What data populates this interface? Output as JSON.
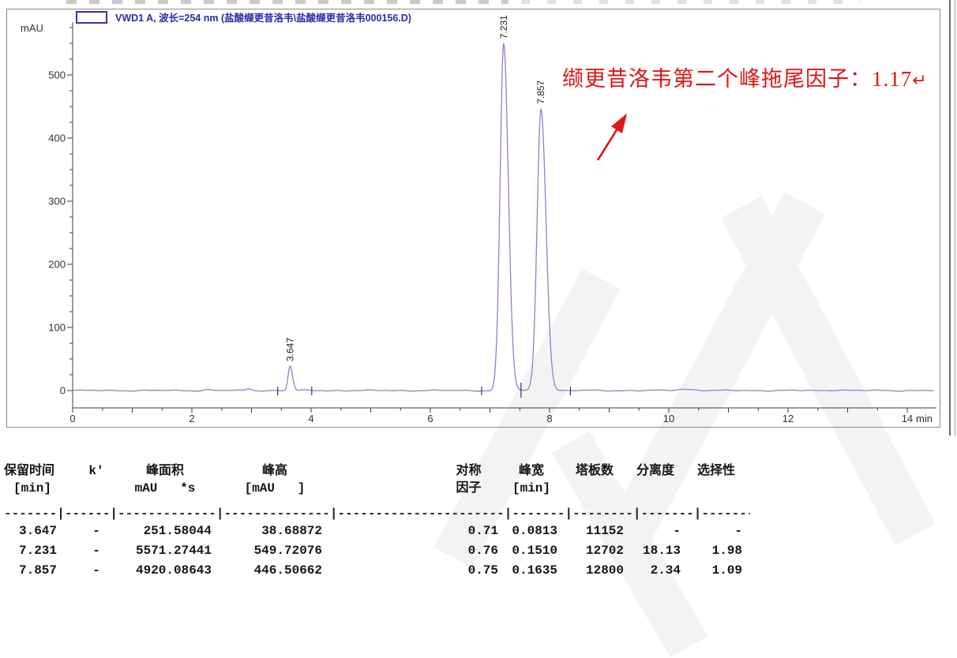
{
  "chart_data": {
    "type": "line",
    "legend": "VWD1 A, 波长=254 nm (盐酸缬更昔洛韦\\盐酸缬更昔洛韦000156.D)",
    "y_axis_unit": "mAU",
    "x_axis_unit": "min",
    "x_ticks": [
      0,
      2,
      4,
      6,
      8,
      10,
      12,
      14
    ],
    "y_ticks": [
      0,
      100,
      200,
      300,
      400,
      500
    ],
    "x_range_min": [
      0,
      14.5
    ],
    "y_range_mAU": [
      0,
      560
    ],
    "trace_color": "#8585cf",
    "axis_color": "#3f3f3f",
    "legend_color": "#2a2aae",
    "peaks": [
      {
        "label": "3.647",
        "rt_min": 3.647,
        "height_mAU": 38.68872,
        "width_min": 0.0813
      },
      {
        "label": "7.231",
        "rt_min": 7.231,
        "height_mAU": 549.72076,
        "width_min": 0.151
      },
      {
        "label": "7.857",
        "rt_min": 7.857,
        "height_mAU": 446.50662,
        "width_min": 0.1635
      }
    ]
  },
  "annotation": {
    "text": "缬更昔洛韦第二个峰拖尾因子：1.17",
    "return_mark": "↵",
    "color": "#e01515"
  },
  "results_table": {
    "columns": [
      {
        "id": "rt",
        "h1": "保留时间",
        "h2": "[min]"
      },
      {
        "id": "k",
        "h1": "k'",
        "h2": ""
      },
      {
        "id": "area",
        "h1": "峰面积",
        "h2": "mAU   *s"
      },
      {
        "id": "height",
        "h1": "峰高",
        "h2": "[mAU   ]"
      },
      {
        "id": "symmetry",
        "h1": "对称",
        "h2": "因子"
      },
      {
        "id": "width",
        "h1": "峰宽",
        "h2": "[min]"
      },
      {
        "id": "plates",
        "h1": "塔板数",
        "h2": ""
      },
      {
        "id": "resolution",
        "h1": "分离度",
        "h2": ""
      },
      {
        "id": "selectivity",
        "h1": "选择性",
        "h2": ""
      }
    ],
    "rows": [
      [
        "3.647",
        "-",
        "251.58044",
        "38.68872",
        "0.71",
        "0.0813",
        "11152",
        "-",
        "-"
      ],
      [
        "7.231",
        "-",
        "5571.27441",
        "549.72076",
        "0.76",
        "0.1510",
        "12702",
        "18.13",
        "1.98"
      ],
      [
        "7.857",
        "-",
        "4920.08643",
        "446.50662",
        "0.75",
        "0.1635",
        "12800",
        "2.34",
        "1.09"
      ]
    ]
  }
}
